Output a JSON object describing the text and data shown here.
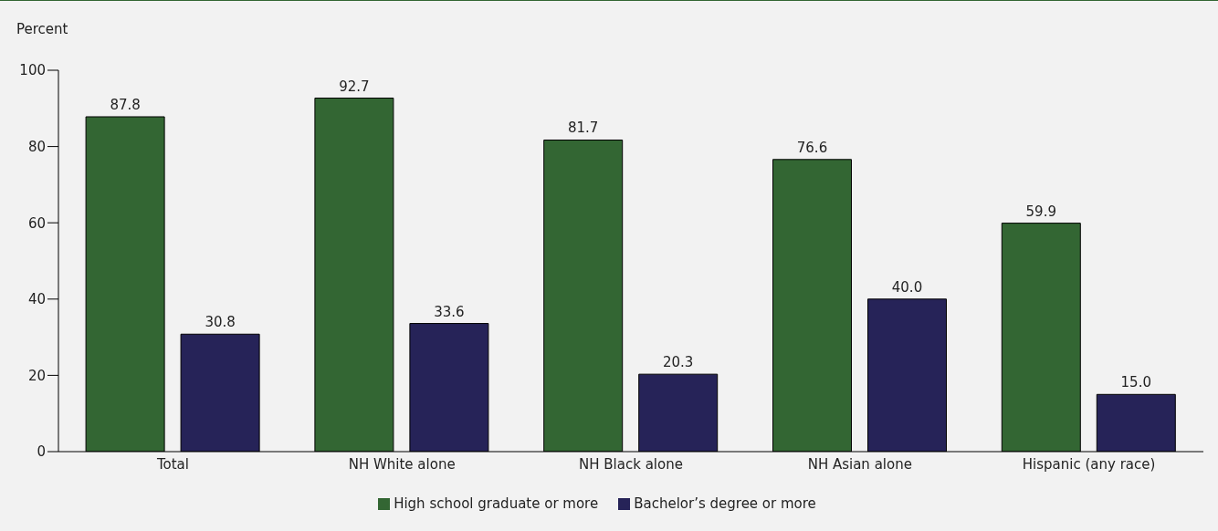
{
  "chart_data": {
    "type": "bar",
    "ylabel": "Percent",
    "categories": [
      "Total",
      "NH White alone",
      "NH Black alone",
      "NH Asian alone",
      "Hispanic (any race)"
    ],
    "series": [
      {
        "name": "High school graduate or more",
        "color": "#336633",
        "values": [
          87.8,
          92.7,
          81.7,
          76.6,
          59.9
        ],
        "value_labels": [
          "87.8",
          "92.7",
          "81.7",
          "76.6",
          "59.9"
        ]
      },
      {
        "name": "Bachelor’s degree or more",
        "color": "#262358",
        "values": [
          30.8,
          33.6,
          20.3,
          40.0,
          15.0
        ],
        "value_labels": [
          "30.8",
          "33.6",
          "20.3",
          "40.0",
          "15.0"
        ]
      }
    ],
    "ylim": [
      0,
      100
    ],
    "yticks": [
      0,
      20,
      40,
      60,
      80,
      100
    ],
    "grid": false,
    "legend": "bottom"
  }
}
